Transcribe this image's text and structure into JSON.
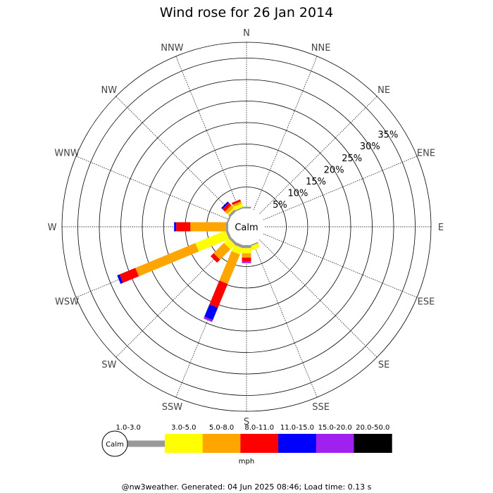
{
  "chart_data": {
    "type": "wind-rose",
    "title": "Wind rose for 26 Jan 2014",
    "directions": [
      "N",
      "NNE",
      "NE",
      "ENE",
      "E",
      "ESE",
      "SE",
      "SSE",
      "S",
      "SSW",
      "SW",
      "WSW",
      "W",
      "WNW",
      "NW",
      "NNW"
    ],
    "rings_pct": [
      5,
      10,
      15,
      20,
      25,
      30,
      35
    ],
    "ring_labels": [
      "5%",
      "10%",
      "15%",
      "20%",
      "25%",
      "30%",
      "35%"
    ],
    "calm_label": "Calm",
    "unit": "mph",
    "speed_bins": [
      {
        "label": "1.0-3.0",
        "color": "#999999"
      },
      {
        "label": "3.0-5.0",
        "color": "#ffff00"
      },
      {
        "label": "5.0-8.0",
        "color": "#ffa500"
      },
      {
        "label": "8.0-11.0",
        "color": "#ff0000"
      },
      {
        "label": "11.0-15.0",
        "color": "#0000ff"
      },
      {
        "label": "15.0-20.0",
        "color": "#a020f0"
      },
      {
        "label": "20.0-50.0",
        "color": "#000000"
      }
    ],
    "series": [
      {
        "direction": "N",
        "values": [
          0.4,
          0,
          0,
          0,
          0,
          0,
          0
        ]
      },
      {
        "direction": "NNE",
        "values": [
          0,
          0,
          0,
          0,
          0,
          0,
          0
        ]
      },
      {
        "direction": "NE",
        "values": [
          0,
          0,
          0,
          0,
          0,
          0,
          0
        ]
      },
      {
        "direction": "ENE",
        "values": [
          0,
          0,
          0,
          0,
          0,
          0,
          0
        ]
      },
      {
        "direction": "E",
        "values": [
          0,
          0,
          0,
          0,
          0,
          0,
          0
        ]
      },
      {
        "direction": "ESE",
        "values": [
          0,
          0,
          0,
          0,
          0,
          0,
          0
        ]
      },
      {
        "direction": "SE",
        "values": [
          0,
          0,
          0,
          0,
          0,
          0,
          0
        ]
      },
      {
        "direction": "SSE",
        "values": [
          0.3,
          1.0,
          0,
          0,
          0,
          0,
          0
        ]
      },
      {
        "direction": "S",
        "values": [
          0.7,
          1.2,
          1.0,
          0.9,
          0,
          0.4,
          0
        ]
      },
      {
        "direction": "SSW",
        "values": [
          0.7,
          1.6,
          7.4,
          6.0,
          3.1,
          0.5,
          0
        ]
      },
      {
        "direction": "SW",
        "values": [
          0.6,
          1.5,
          3.4,
          1.0,
          0,
          0,
          0
        ]
      },
      {
        "direction": "WSW",
        "values": [
          0.6,
          7.6,
          15.1,
          4.0,
          0.6,
          0,
          0
        ]
      },
      {
        "direction": "W",
        "values": [
          0.5,
          0,
          8.3,
          3.3,
          0.5,
          0,
          0
        ]
      },
      {
        "direction": "WNW",
        "values": [
          0.4,
          0,
          0,
          0,
          0,
          0,
          0
        ]
      },
      {
        "direction": "NW",
        "values": [
          0.6,
          0.4,
          0.8,
          0.8,
          0.4,
          0,
          0
        ]
      },
      {
        "direction": "NNW",
        "values": [
          0.3,
          0.9,
          0.5,
          0.5,
          0,
          0,
          0
        ]
      }
    ]
  },
  "footer": "@nw3weather. Generated: 04 Jun 2025 08:46; Load time: 0.13 s"
}
